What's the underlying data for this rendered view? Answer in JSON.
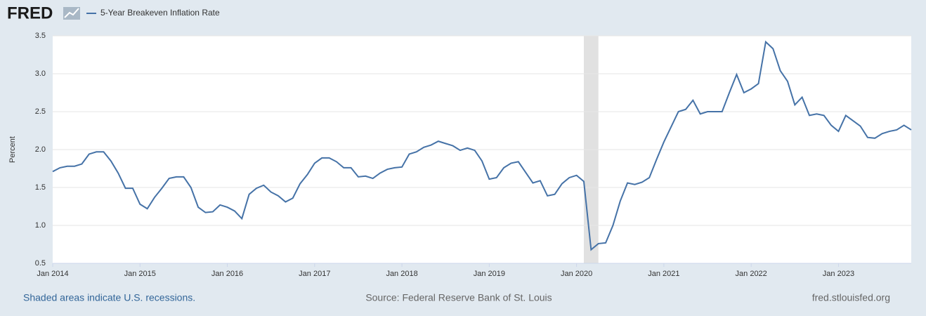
{
  "header": {
    "logo": "FRED"
  },
  "chart_data": {
    "type": "line",
    "y_label": "Percent",
    "x": [
      "2014-01",
      "2014-02",
      "2014-03",
      "2014-04",
      "2014-05",
      "2014-06",
      "2014-07",
      "2014-08",
      "2014-09",
      "2014-10",
      "2014-11",
      "2014-12",
      "2015-01",
      "2015-02",
      "2015-03",
      "2015-04",
      "2015-05",
      "2015-06",
      "2015-07",
      "2015-08",
      "2015-09",
      "2015-10",
      "2015-11",
      "2015-12",
      "2016-01",
      "2016-02",
      "2016-03",
      "2016-04",
      "2016-05",
      "2016-06",
      "2016-07",
      "2016-08",
      "2016-09",
      "2016-10",
      "2016-11",
      "2016-12",
      "2017-01",
      "2017-02",
      "2017-03",
      "2017-04",
      "2017-05",
      "2017-06",
      "2017-07",
      "2017-08",
      "2017-09",
      "2017-10",
      "2017-11",
      "2017-12",
      "2018-01",
      "2018-02",
      "2018-03",
      "2018-04",
      "2018-05",
      "2018-06",
      "2018-07",
      "2018-08",
      "2018-09",
      "2018-10",
      "2018-11",
      "2018-12",
      "2019-01",
      "2019-02",
      "2019-03",
      "2019-04",
      "2019-05",
      "2019-06",
      "2019-07",
      "2019-08",
      "2019-09",
      "2019-10",
      "2019-11",
      "2019-12",
      "2020-01",
      "2020-02",
      "2020-03",
      "2020-04",
      "2020-05",
      "2020-06",
      "2020-07",
      "2020-08",
      "2020-09",
      "2020-10",
      "2020-11",
      "2020-12",
      "2021-01",
      "2021-02",
      "2021-03",
      "2021-04",
      "2021-05",
      "2021-06",
      "2021-07",
      "2021-08",
      "2021-09",
      "2021-10",
      "2021-11",
      "2021-12",
      "2022-01",
      "2022-02",
      "2022-03",
      "2022-04",
      "2022-05",
      "2022-06",
      "2022-07",
      "2022-08",
      "2022-09",
      "2022-10",
      "2022-11",
      "2022-12",
      "2023-01",
      "2023-02",
      "2023-03",
      "2023-04",
      "2023-05",
      "2023-06",
      "2023-07",
      "2023-08",
      "2023-09",
      "2023-10",
      "2023-11"
    ],
    "series": [
      {
        "name": "5-Year Breakeven Inflation Rate",
        "color": "#4572a7",
        "values": [
          1.71,
          1.76,
          1.78,
          1.78,
          1.81,
          1.94,
          1.97,
          1.97,
          1.85,
          1.69,
          1.49,
          1.49,
          1.28,
          1.22,
          1.37,
          1.49,
          1.62,
          1.64,
          1.64,
          1.5,
          1.24,
          1.17,
          1.18,
          1.27,
          1.24,
          1.19,
          1.09,
          1.41,
          1.49,
          1.53,
          1.44,
          1.39,
          1.31,
          1.36,
          1.55,
          1.67,
          1.82,
          1.89,
          1.89,
          1.84,
          1.76,
          1.76,
          1.64,
          1.65,
          1.62,
          1.69,
          1.74,
          1.76,
          1.77,
          1.94,
          1.97,
          2.03,
          2.06,
          2.11,
          2.08,
          2.05,
          1.99,
          2.02,
          1.99,
          1.85,
          1.61,
          1.63,
          1.76,
          1.82,
          1.84,
          1.7,
          1.56,
          1.59,
          1.39,
          1.41,
          1.55,
          1.63,
          1.66,
          1.58,
          0.68,
          0.76,
          0.77,
          1.0,
          1.32,
          1.56,
          1.54,
          1.57,
          1.63,
          1.87,
          2.1,
          2.3,
          2.5,
          2.53,
          2.65,
          2.47,
          2.5,
          2.5,
          2.5,
          2.75,
          2.99,
          2.75,
          2.8,
          2.87,
          3.42,
          3.33,
          3.04,
          2.9,
          2.59,
          2.69,
          2.45,
          2.47,
          2.45,
          2.32,
          2.24,
          2.45,
          2.38,
          2.31,
          2.16,
          2.15,
          2.21,
          2.24,
          2.26,
          2.32,
          2.26
        ]
      }
    ],
    "recessions": [
      {
        "start": "2020-02",
        "end": "2020-04"
      }
    ],
    "xlim": [
      "2014-01",
      "2023-11"
    ],
    "xticks": [
      {
        "value": "2014-01",
        "label": "Jan 2014"
      },
      {
        "value": "2015-01",
        "label": "Jan 2015"
      },
      {
        "value": "2016-01",
        "label": "Jan 2016"
      },
      {
        "value": "2017-01",
        "label": "Jan 2017"
      },
      {
        "value": "2018-01",
        "label": "Jan 2018"
      },
      {
        "value": "2019-01",
        "label": "Jan 2019"
      },
      {
        "value": "2020-01",
        "label": "Jan 2020"
      },
      {
        "value": "2021-01",
        "label": "Jan 2021"
      },
      {
        "value": "2022-01",
        "label": "Jan 2022"
      },
      {
        "value": "2023-01",
        "label": "Jan 2023"
      }
    ],
    "ylim": [
      0.5,
      3.5
    ],
    "yticks": [
      0.5,
      {
        "value": 1,
        "label": "1.0"
      },
      1.5,
      {
        "value": 2,
        "label": "2.0"
      },
      2.5,
      {
        "value": 3,
        "label": "3.0"
      },
      3.5
    ],
    "grid": true
  },
  "footer": {
    "note": "Shaded areas indicate U.S. recessions.",
    "source": "Source: Federal Reserve Bank of St. Louis",
    "site": "fred.stlouisfed.org"
  }
}
